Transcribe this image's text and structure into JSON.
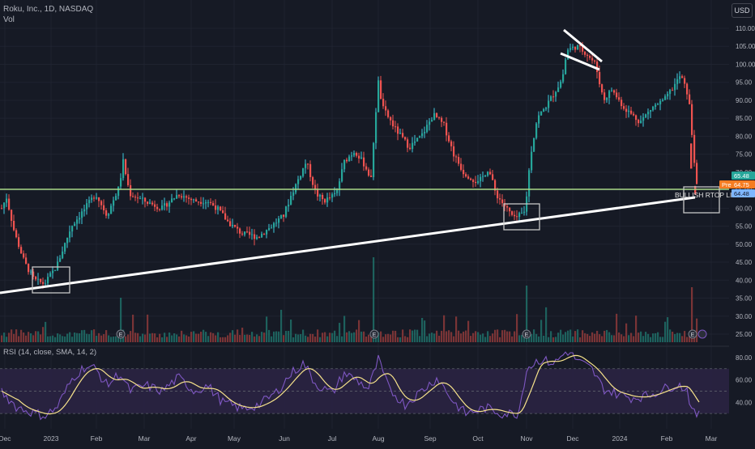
{
  "header": {
    "symbol_line": "Roku, Inc., 1D, NASDAQ",
    "volume_label": "Vol",
    "currency_button": "USD"
  },
  "price_axis": {
    "ticks": [
      "110.00",
      "105.00",
      "100.00",
      "95.00",
      "90.00",
      "85.00",
      "80.00",
      "75.00",
      "70.00",
      "65.00",
      "60.00",
      "55.00",
      "50.00",
      "45.00",
      "40.00",
      "35.00",
      "30.00",
      "25.00"
    ],
    "badges": [
      {
        "label": "65.48",
        "color": "#26a69a",
        "text_color": "#ffffff"
      },
      {
        "label": "Pre",
        "label2": "64.75",
        "color": "#f57c22",
        "text_color": "#ffffff"
      },
      {
        "label": "64.48",
        "color": "#7fb6ff",
        "text_color": "#131722"
      }
    ]
  },
  "rsi": {
    "label": "RSI (14, close, SMA, 14, 2)",
    "ticks": [
      "80.00",
      "60.00",
      "40.00"
    ],
    "band_color": "#2a2442",
    "line_color": "#7e57c2",
    "ma_color": "#f7e38b"
  },
  "time_axis": {
    "ticks": [
      "Dec",
      "2023",
      "Feb",
      "Mar",
      "Apr",
      "May",
      "Jun",
      "Jul",
      "Aug",
      "Sep",
      "Oct",
      "Nov",
      "Dec",
      "2024",
      "Feb",
      "Mar"
    ]
  },
  "annotations": {
    "bullish_label": "BULLISH RTOP LINE"
  },
  "colors": {
    "background": "#161a25",
    "up": "#26a69a",
    "down": "#ef5350",
    "up_wick": "#3dc9de",
    "horizontal_line": "#a8d887",
    "trendline": "#ffffff",
    "box": "#c7c7c7"
  },
  "chart_data": {
    "type": "candlestick",
    "title": "Roku, Inc., 1D, NASDAQ",
    "ylim": [
      23,
      113
    ],
    "resistance_level": 64.48,
    "trendline": {
      "from": [
        "2022-12-01",
        37.3
      ],
      "to": [
        "2024-02-16",
        61.6
      ]
    },
    "series": [
      {
        "date": "2022-12",
        "close": 63
      },
      {
        "date": "2022-12-20",
        "close": 40
      },
      {
        "date": "2023-01",
        "close": 45
      },
      {
        "date": "2023-02",
        "close": 70
      },
      {
        "date": "2023-03",
        "close": 62
      },
      {
        "date": "2023-04",
        "close": 64
      },
      {
        "date": "2023-05",
        "close": 53
      },
      {
        "date": "2023-06",
        "close": 60
      },
      {
        "date": "2023-06-20",
        "close": 72
      },
      {
        "date": "2023-07",
        "close": 62
      },
      {
        "date": "2023-07-20",
        "close": 77
      },
      {
        "date": "2023-08",
        "close": 96
      },
      {
        "date": "2023-08-20",
        "close": 80
      },
      {
        "date": "2023-09",
        "close": 85
      },
      {
        "date": "2023-09-20",
        "close": 69
      },
      {
        "date": "2023-10",
        "close": 70
      },
      {
        "date": "2023-10-20",
        "close": 57
      },
      {
        "date": "2023-11",
        "close": 85
      },
      {
        "date": "2023-11-20",
        "close": 98
      },
      {
        "date": "2023-12",
        "close": 106
      },
      {
        "date": "2023-12-15",
        "close": 90
      },
      {
        "date": "2024-01",
        "close": 92
      },
      {
        "date": "2024-01-20",
        "close": 84
      },
      {
        "date": "2024-02-01",
        "close": 97
      },
      {
        "date": "2024-02-14",
        "close": 90
      },
      {
        "date": "2024-02-16",
        "close": 77
      },
      {
        "date": "2024-02-20",
        "close": 65
      }
    ]
  }
}
